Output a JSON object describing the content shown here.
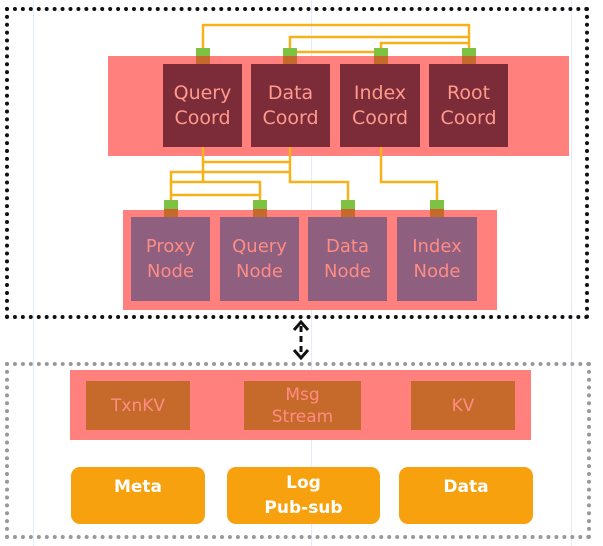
{
  "coordinators": [
    {
      "label": "Query\nCoord"
    },
    {
      "label": "Data\nCoord"
    },
    {
      "label": "Index\nCoord"
    },
    {
      "label": "Root\nCoord"
    }
  ],
  "nodes": [
    {
      "label": "Proxy\nNode"
    },
    {
      "label": "Query\nNode"
    },
    {
      "label": "Data\nNode"
    },
    {
      "label": "Index\nNode"
    }
  ],
  "storage_services": [
    {
      "label": "TxnKV"
    },
    {
      "label": "Msg\nStream"
    },
    {
      "label": "KV"
    }
  ],
  "storage_types": [
    {
      "label": "Meta"
    },
    {
      "label": "Log\nPub-sub"
    },
    {
      "label": "Data"
    }
  ],
  "colors": {
    "band": "#ff807c",
    "coord": "#7b2c38",
    "node": "#8e5f7e",
    "store": "#c56a2a",
    "base": "#f7a10f",
    "line": "#f7b21a",
    "connector": "#7dc242"
  }
}
